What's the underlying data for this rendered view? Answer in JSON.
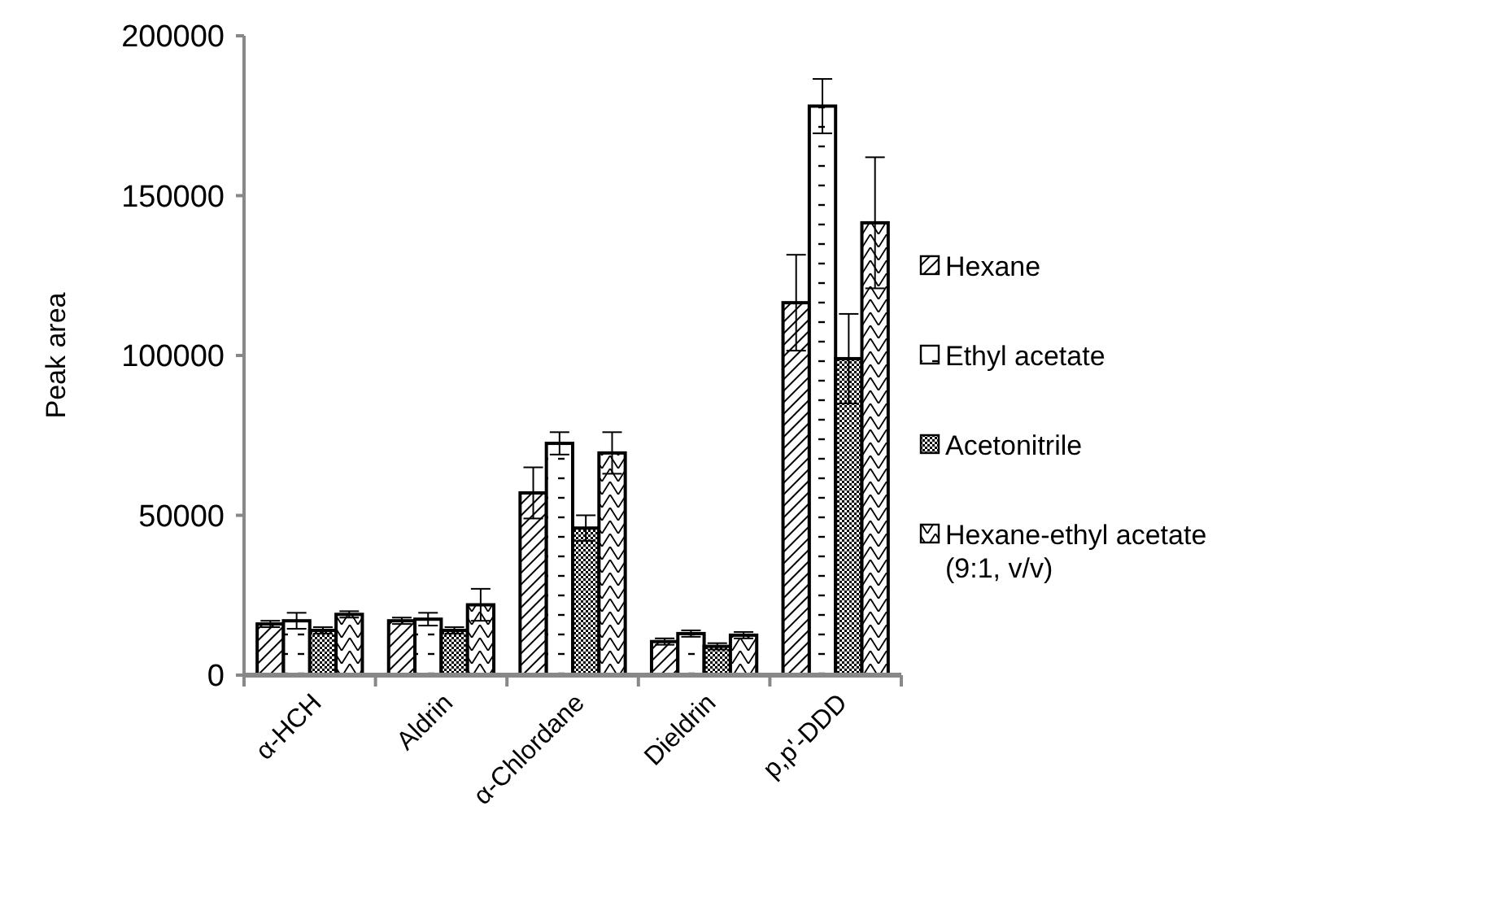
{
  "chart_data": {
    "type": "bar",
    "ylabel": "Peak area",
    "categories": [
      "α-HCH",
      "Aldrin",
      "α-Chlordane",
      "Dieldrin",
      "p,p'-DDD"
    ],
    "ylim": [
      0,
      200000
    ],
    "yticks": [
      0,
      50000,
      100000,
      150000,
      200000
    ],
    "grid": false,
    "legend": "right",
    "series": [
      {
        "name": "Hexane",
        "color": "#000000",
        "values": [
          16000,
          17000,
          57000,
          10500,
          116500
        ],
        "errors": [
          1000,
          1000,
          8000,
          1000,
          15000
        ]
      },
      {
        "name": "Ethyl acetate",
        "color": "#000000",
        "values": [
          17000,
          17500,
          72500,
          13000,
          178000
        ],
        "errors": [
          2500,
          2000,
          3500,
          1000,
          8500
        ]
      },
      {
        "name": "Acetonitrile",
        "color": "#000000",
        "values": [
          14000,
          14000,
          46000,
          9000,
          99000
        ],
        "errors": [
          1000,
          1000,
          4000,
          1000,
          14000
        ]
      },
      {
        "name": "Hexane-ethyl acetate (9:1, v/v)",
        "color": "#000000",
        "values": [
          19000,
          22000,
          69500,
          12500,
          141500
        ],
        "errors": [
          1000,
          5000,
          6500,
          1000,
          20500
        ]
      }
    ]
  }
}
